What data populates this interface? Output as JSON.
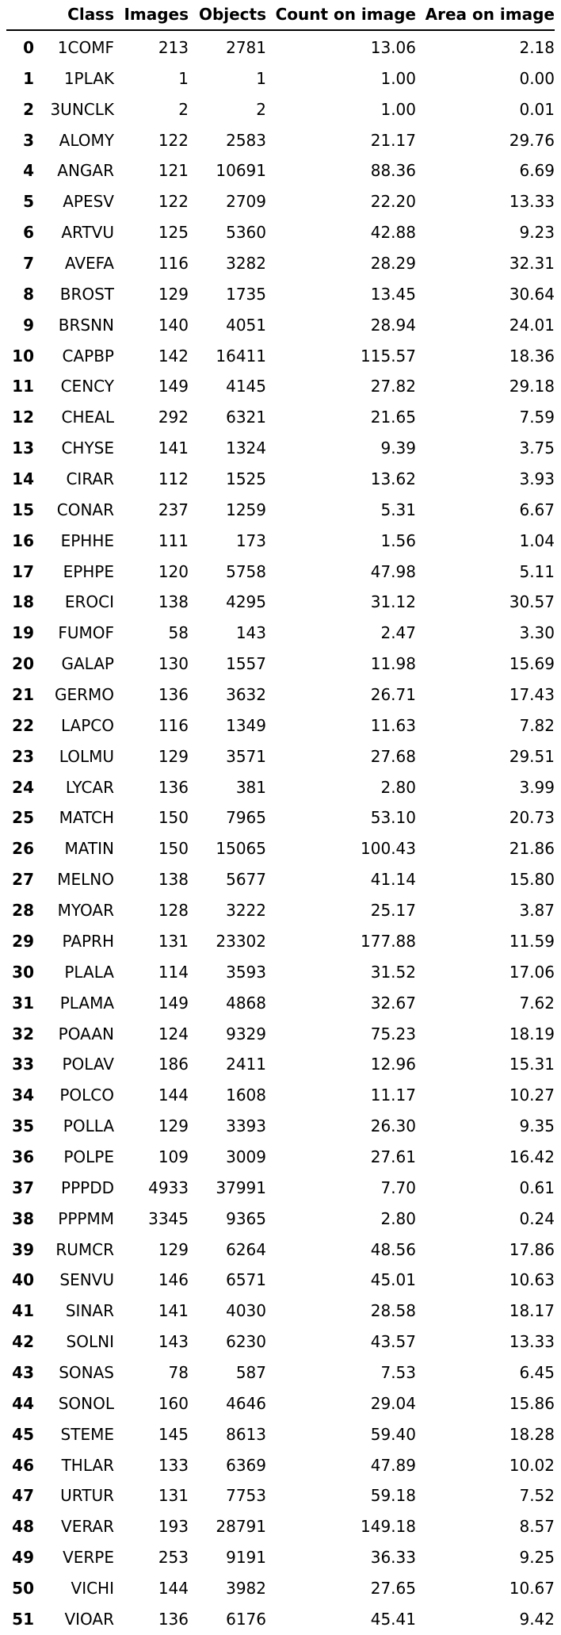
{
  "columns": [
    "",
    "Class",
    "Images",
    "Objects",
    "Count on image",
    "Area on image"
  ],
  "rows": [
    [
      "0",
      "1COMF",
      "213",
      "2781",
      "13.06",
      "2.18"
    ],
    [
      "1",
      "1PLAK",
      "1",
      "1",
      "1.00",
      "0.00"
    ],
    [
      "2",
      "3UNCLK",
      "2",
      "2",
      "1.00",
      "0.01"
    ],
    [
      "3",
      "ALOMY",
      "122",
      "2583",
      "21.17",
      "29.76"
    ],
    [
      "4",
      "ANGAR",
      "121",
      "10691",
      "88.36",
      "6.69"
    ],
    [
      "5",
      "APESV",
      "122",
      "2709",
      "22.20",
      "13.33"
    ],
    [
      "6",
      "ARTVU",
      "125",
      "5360",
      "42.88",
      "9.23"
    ],
    [
      "7",
      "AVEFA",
      "116",
      "3282",
      "28.29",
      "32.31"
    ],
    [
      "8",
      "BROST",
      "129",
      "1735",
      "13.45",
      "30.64"
    ],
    [
      "9",
      "BRSNN",
      "140",
      "4051",
      "28.94",
      "24.01"
    ],
    [
      "10",
      "CAPBP",
      "142",
      "16411",
      "115.57",
      "18.36"
    ],
    [
      "11",
      "CENCY",
      "149",
      "4145",
      "27.82",
      "29.18"
    ],
    [
      "12",
      "CHEAL",
      "292",
      "6321",
      "21.65",
      "7.59"
    ],
    [
      "13",
      "CHYSE",
      "141",
      "1324",
      "9.39",
      "3.75"
    ],
    [
      "14",
      "CIRAR",
      "112",
      "1525",
      "13.62",
      "3.93"
    ],
    [
      "15",
      "CONAR",
      "237",
      "1259",
      "5.31",
      "6.67"
    ],
    [
      "16",
      "EPHHE",
      "111",
      "173",
      "1.56",
      "1.04"
    ],
    [
      "17",
      "EPHPE",
      "120",
      "5758",
      "47.98",
      "5.11"
    ],
    [
      "18",
      "EROCI",
      "138",
      "4295",
      "31.12",
      "30.57"
    ],
    [
      "19",
      "FUMOF",
      "58",
      "143",
      "2.47",
      "3.30"
    ],
    [
      "20",
      "GALAP",
      "130",
      "1557",
      "11.98",
      "15.69"
    ],
    [
      "21",
      "GERMO",
      "136",
      "3632",
      "26.71",
      "17.43"
    ],
    [
      "22",
      "LAPCO",
      "116",
      "1349",
      "11.63",
      "7.82"
    ],
    [
      "23",
      "LOLMU",
      "129",
      "3571",
      "27.68",
      "29.51"
    ],
    [
      "24",
      "LYCAR",
      "136",
      "381",
      "2.80",
      "3.99"
    ],
    [
      "25",
      "MATCH",
      "150",
      "7965",
      "53.10",
      "20.73"
    ],
    [
      "26",
      "MATIN",
      "150",
      "15065",
      "100.43",
      "21.86"
    ],
    [
      "27",
      "MELNO",
      "138",
      "5677",
      "41.14",
      "15.80"
    ],
    [
      "28",
      "MYOAR",
      "128",
      "3222",
      "25.17",
      "3.87"
    ],
    [
      "29",
      "PAPRH",
      "131",
      "23302",
      "177.88",
      "11.59"
    ],
    [
      "30",
      "PLALA",
      "114",
      "3593",
      "31.52",
      "17.06"
    ],
    [
      "31",
      "PLAMA",
      "149",
      "4868",
      "32.67",
      "7.62"
    ],
    [
      "32",
      "POAAN",
      "124",
      "9329",
      "75.23",
      "18.19"
    ],
    [
      "33",
      "POLAV",
      "186",
      "2411",
      "12.96",
      "15.31"
    ],
    [
      "34",
      "POLCO",
      "144",
      "1608",
      "11.17",
      "10.27"
    ],
    [
      "35",
      "POLLA",
      "129",
      "3393",
      "26.30",
      "9.35"
    ],
    [
      "36",
      "POLPE",
      "109",
      "3009",
      "27.61",
      "16.42"
    ],
    [
      "37",
      "PPPDD",
      "4933",
      "37991",
      "7.70",
      "0.61"
    ],
    [
      "38",
      "PPPMM",
      "3345",
      "9365",
      "2.80",
      "0.24"
    ],
    [
      "39",
      "RUMCR",
      "129",
      "6264",
      "48.56",
      "17.86"
    ],
    [
      "40",
      "SENVU",
      "146",
      "6571",
      "45.01",
      "10.63"
    ],
    [
      "41",
      "SINAR",
      "141",
      "4030",
      "28.58",
      "18.17"
    ],
    [
      "42",
      "SOLNI",
      "143",
      "6230",
      "43.57",
      "13.33"
    ],
    [
      "43",
      "SONAS",
      "78",
      "587",
      "7.53",
      "6.45"
    ],
    [
      "44",
      "SONOL",
      "160",
      "4646",
      "29.04",
      "15.86"
    ],
    [
      "45",
      "STEME",
      "145",
      "8613",
      "59.40",
      "18.28"
    ],
    [
      "46",
      "THLAR",
      "133",
      "6369",
      "47.89",
      "10.02"
    ],
    [
      "47",
      "URTUR",
      "131",
      "7753",
      "59.18",
      "7.52"
    ],
    [
      "48",
      "VERAR",
      "193",
      "28791",
      "149.18",
      "8.57"
    ],
    [
      "49",
      "VERPE",
      "253",
      "9191",
      "36.33",
      "9.25"
    ],
    [
      "50",
      "VICHI",
      "144",
      "3982",
      "27.65",
      "10.67"
    ],
    [
      "51",
      "VIOAR",
      "136",
      "6176",
      "45.41",
      "9.42"
    ]
  ]
}
